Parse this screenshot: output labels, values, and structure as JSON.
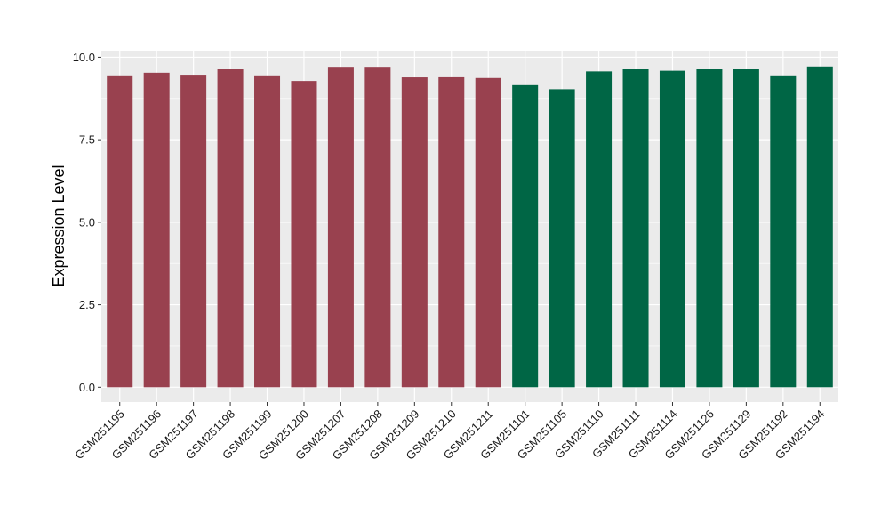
{
  "chart_data": {
    "type": "bar",
    "title": "",
    "xlabel": "",
    "ylabel": "Expression Level",
    "ylim": [
      -0.45,
      10.2
    ],
    "yticks": [
      0.0,
      2.5,
      5.0,
      7.5,
      10.0
    ],
    "ytick_labels": [
      "0.0",
      "2.5",
      "5.0",
      "7.5",
      "10.0"
    ],
    "grid": true,
    "legend": "none",
    "categories": [
      "GSM251195",
      "GSM251196",
      "GSM251197",
      "GSM251198",
      "GSM251199",
      "GSM251200",
      "GSM251207",
      "GSM251208",
      "GSM251209",
      "GSM251210",
      "GSM251211",
      "GSM251101",
      "GSM251105",
      "GSM251110",
      "GSM251111",
      "GSM251114",
      "GSM251126",
      "GSM251129",
      "GSM251192",
      "GSM251194"
    ],
    "values": [
      9.45,
      9.53,
      9.47,
      9.66,
      9.45,
      9.28,
      9.71,
      9.71,
      9.39,
      9.42,
      9.37,
      9.18,
      9.03,
      9.57,
      9.66,
      9.59,
      9.66,
      9.64,
      9.45,
      9.72
    ],
    "group_of_bar": [
      0,
      0,
      0,
      0,
      0,
      0,
      0,
      0,
      0,
      0,
      0,
      1,
      1,
      1,
      1,
      1,
      1,
      1,
      1,
      1
    ],
    "group_colors": [
      "#99414f",
      "#006645"
    ],
    "panel_background": "#ebebeb",
    "gridline_color": "#ffffff"
  }
}
